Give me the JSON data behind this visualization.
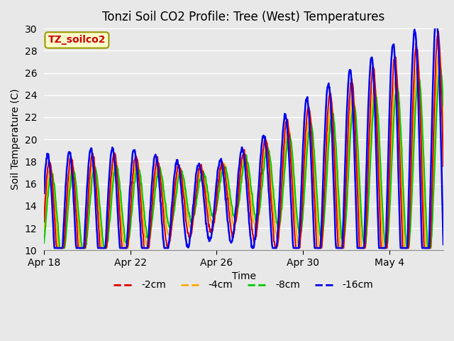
{
  "title": "Tonzi Soil CO2 Profile: Tree (West) Temperatures",
  "xlabel": "Time",
  "ylabel": "Soil Temperature (C)",
  "ylim": [
    10,
    30
  ],
  "xlim_max": 18.5,
  "xtick_labels": [
    "Apr 18",
    "Apr 22",
    "Apr 26",
    "Apr 30",
    "May 4"
  ],
  "xtick_positions": [
    0,
    4,
    8,
    12,
    16
  ],
  "background_color": "#e8e8e8",
  "legend_box_color": "#ffffcc",
  "legend_box_edge": "#999900",
  "annotation_text": "TZ_soilco2",
  "annotation_color": "#cc0000",
  "series": {
    "-2cm": {
      "color": "#dd0000",
      "lw": 1.5
    },
    "-4cm": {
      "color": "#ffaa00",
      "lw": 1.5
    },
    "-8cm": {
      "color": "#00cc00",
      "lw": 1.5
    },
    "-16cm": {
      "color": "#0000ee",
      "lw": 1.8
    }
  },
  "ytick_positions": [
    10,
    12,
    14,
    16,
    18,
    20,
    22,
    24,
    26,
    28,
    30
  ],
  "grid_color": "#ffffff",
  "grid_lw": 1.0,
  "n_points": 1000,
  "amplitude_base": 5.5,
  "period_days": 1.0,
  "trend_start": 12.5,
  "trend_end": 17.5
}
